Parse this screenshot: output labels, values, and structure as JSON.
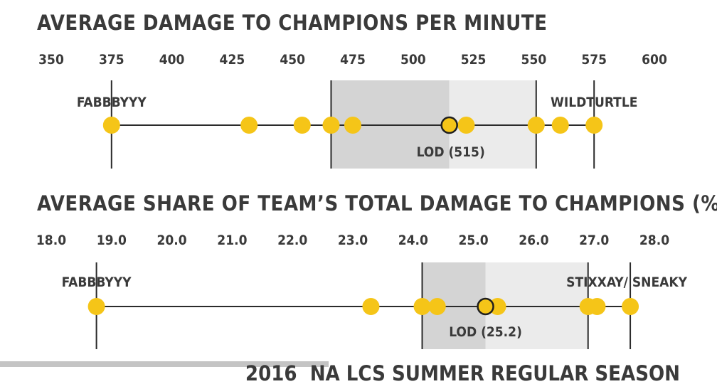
{
  "colors": {
    "dot": "#f5c518",
    "highlight_ring": "#1f1f1f",
    "line": "#2b2b2b",
    "text": "#3a3a3a",
    "band_dark": "#d4d4d4",
    "band_light": "#ebebeb",
    "footer_bar": "#c4c4c4"
  },
  "chart_data": [
    {
      "type": "scatter",
      "title": "AVERAGE DAMAGE TO CHAMPIONS PER MINUTE",
      "tick_labels": [
        "350",
        "375",
        "400",
        "425",
        "450",
        "475",
        "500",
        "525",
        "550",
        "575",
        "600"
      ],
      "xlim": [
        350,
        600
      ],
      "x": [
        375,
        432,
        454,
        466,
        475,
        515,
        522,
        551,
        561,
        575
      ],
      "highlight": {
        "x": 515,
        "label": "LOD (515)"
      },
      "min_label": "FABBBYYY",
      "max_label": "WILDTURTLE",
      "bands": [
        {
          "from": 466,
          "to": 515,
          "shade": "dark"
        },
        {
          "from": 515,
          "to": 551,
          "shade": "light"
        }
      ],
      "reference_lines": [
        375,
        466,
        551,
        575
      ]
    },
    {
      "type": "scatter",
      "title": "AVERAGE SHARE OF TEAM’S TOTAL DAMAGE TO CHAMPIONS (%)",
      "tick_labels": [
        "18.0",
        "19.0",
        "20.0",
        "21.0",
        "22.0",
        "23.0",
        "24.0",
        "25.0",
        "26.0",
        "27.0",
        "28.0"
      ],
      "xlim": [
        18.0,
        28.0
      ],
      "x": [
        18.75,
        23.3,
        24.15,
        24.4,
        25.2,
        25.4,
        26.9,
        27.05,
        27.6
      ],
      "highlight": {
        "x": 25.2,
        "label": "LOD (25.2)"
      },
      "min_label": "FABBBYYY",
      "max_label": "STIXXAY/ SNEAKY",
      "bands": [
        {
          "from": 24.15,
          "to": 25.2,
          "shade": "dark"
        },
        {
          "from": 25.2,
          "to": 26.9,
          "shade": "light"
        }
      ],
      "reference_lines": [
        18.75,
        24.15,
        26.9,
        27.6
      ]
    }
  ],
  "footer": {
    "text": "2016  NA LCS SUMMER REGULAR SEASON"
  }
}
